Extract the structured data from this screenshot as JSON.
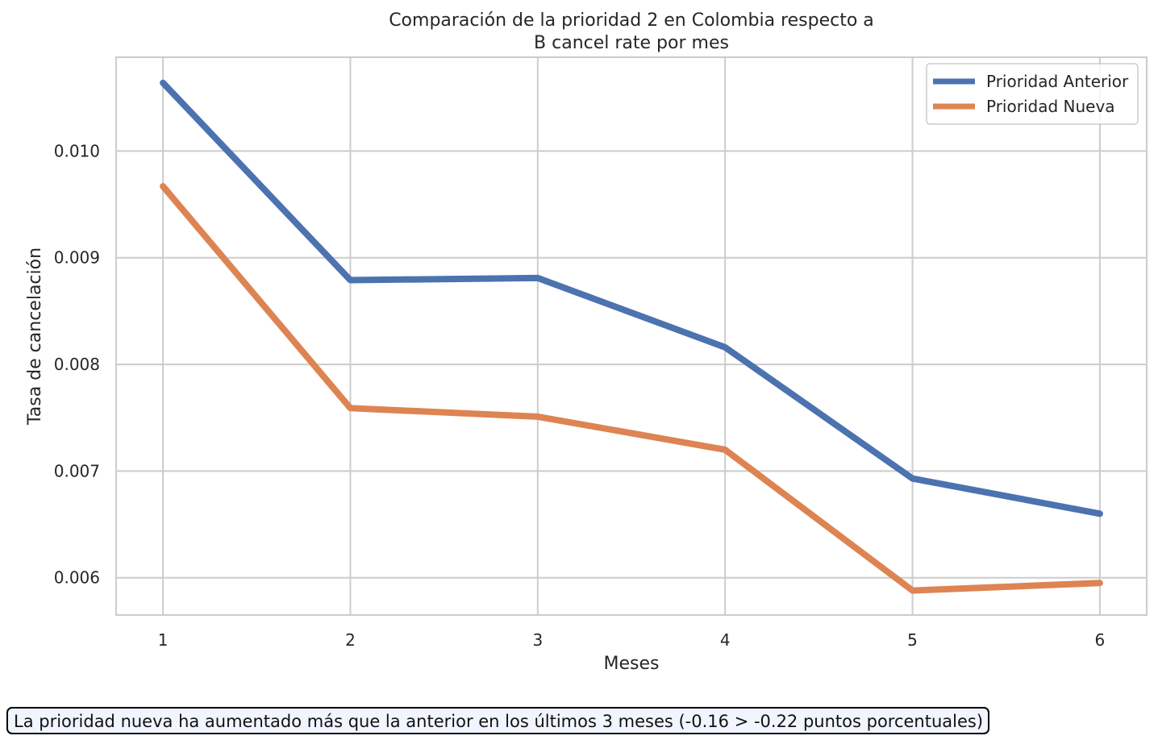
{
  "chart_data": {
    "type": "line",
    "title_line1": "Comparación de la prioridad 2 en Colombia respecto a",
    "title_line2": "B cancel rate por mes",
    "xlabel": "Meses",
    "ylabel": "Tasa de cancelación",
    "x": [
      1,
      2,
      3,
      4,
      5,
      6
    ],
    "x_tick_labels": [
      "1",
      "2",
      "3",
      "4",
      "5",
      "6"
    ],
    "y_ticks": [
      0.006,
      0.007,
      0.008,
      0.009,
      0.01
    ],
    "y_tick_labels": [
      "0.006",
      "0.007",
      "0.008",
      "0.009",
      "0.010"
    ],
    "xlim": [
      0.75,
      6.25
    ],
    "ylim": [
      0.00565,
      0.01088
    ],
    "grid": true,
    "legend_position": "top-right",
    "series": [
      {
        "name": "Prioridad Anterior",
        "color": "#4c72b0",
        "values": [
          0.01064,
          0.00879,
          0.00881,
          0.00816,
          0.00693,
          0.0066
        ]
      },
      {
        "name": "Prioridad Nueva",
        "color": "#dd8452",
        "values": [
          0.00967,
          0.00759,
          0.00751,
          0.0072,
          0.00588,
          0.00595
        ]
      }
    ]
  },
  "footnote": "La prioridad nueva ha aumentado más que la anterior en los últimos 3 meses (-0.16 > -0.22 puntos porcentuales)"
}
